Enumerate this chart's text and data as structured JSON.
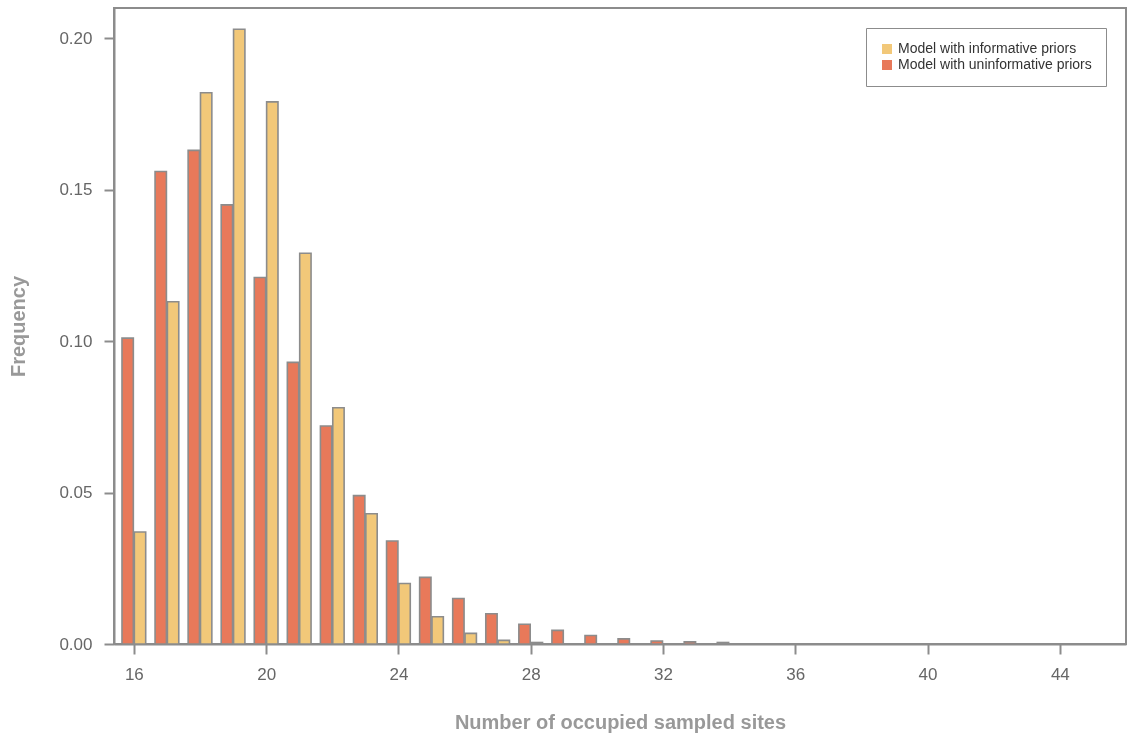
{
  "chart_data": {
    "type": "bar",
    "xlabel": "Number of occupied sampled sites",
    "ylabel": "Frequency",
    "series": [
      {
        "name": "Model with informative priors",
        "color": "#f2c879",
        "x": [
          16,
          17,
          18,
          19,
          20,
          21,
          22,
          23,
          24,
          25,
          26,
          27,
          28
        ],
        "values": [
          0.037,
          0.113,
          0.182,
          0.203,
          0.179,
          0.129,
          0.078,
          0.043,
          0.02,
          0.009,
          0.0035,
          0.0012,
          0.0005
        ]
      },
      {
        "name": "Model with uninformative priors",
        "color": "#e8795a",
        "x": [
          16,
          17,
          18,
          19,
          20,
          21,
          22,
          23,
          24,
          25,
          26,
          27,
          28,
          29,
          30,
          31,
          32,
          33,
          34
        ],
        "values": [
          0.101,
          0.156,
          0.163,
          0.145,
          0.121,
          0.093,
          0.072,
          0.049,
          0.034,
          0.022,
          0.015,
          0.01,
          0.0065,
          0.0045,
          0.0028,
          0.0017,
          0.001,
          0.0007,
          0.0005
        ]
      }
    ],
    "xlim": [
      15.4,
      46
    ],
    "xticks": [
      16,
      20,
      24,
      28,
      32,
      36,
      40,
      44
    ],
    "ylim": [
      0,
      0.21
    ],
    "yticks": [
      {
        "value": 0,
        "label": "0.00"
      },
      {
        "value": 0.05,
        "label": "0.05"
      },
      {
        "value": 0.1,
        "label": "0.10"
      },
      {
        "value": 0.15,
        "label": "0.15"
      },
      {
        "value": 0.2,
        "label": "0.20"
      }
    ],
    "grid": false,
    "legend": "top right"
  }
}
